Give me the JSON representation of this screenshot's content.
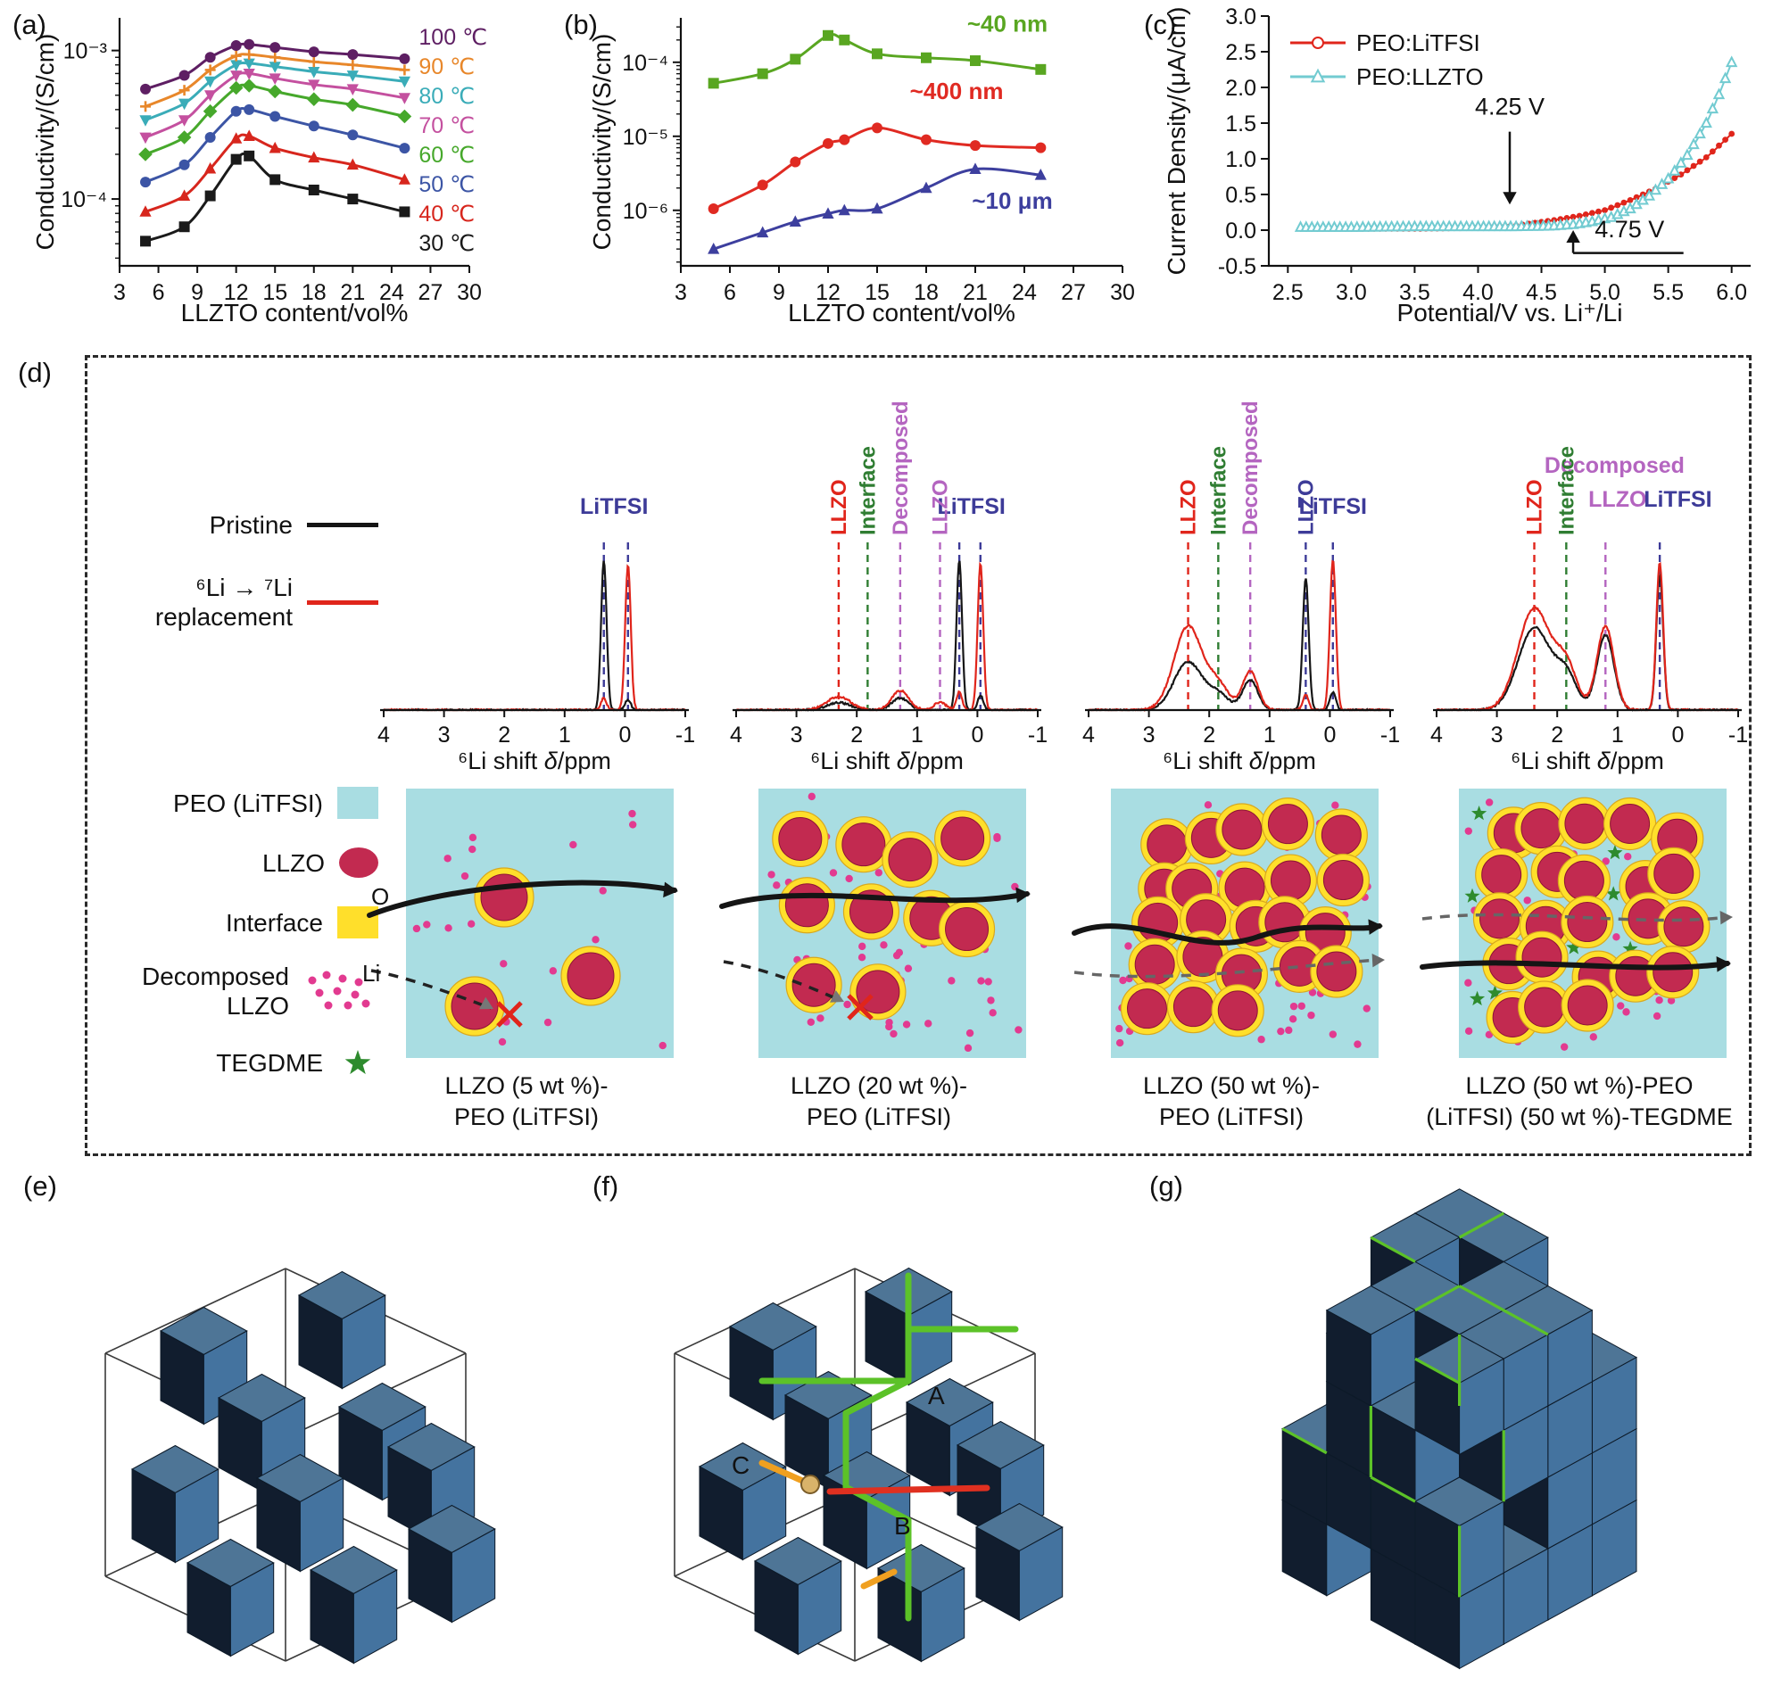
{
  "labels": {
    "a": "(a)",
    "b": "(b)",
    "c": "(c)",
    "d": "(d)",
    "e": "(e)",
    "f": "(f)",
    "g": "(g)"
  },
  "colors": {
    "pristine": "#151515",
    "replacement": "#e0251b",
    "peo_bg": "#a9dde2",
    "llzo_fill": "#c22a50",
    "interface": "#ffdf2b",
    "decomposed_dot": "#e23a90",
    "tegdme_star": "#2e8b2e",
    "cube_top": "#4e7596",
    "cube_left": "#111d2e",
    "cube_right": "#44739f",
    "path_green": "#5cc228",
    "path_red": "#e03020",
    "path_orange": "#f0a020",
    "nmr_blue": "#3d3b98",
    "nmr_red": "#e0251b",
    "nmr_green": "#2f7d32",
    "nmr_purple": "#b465c0"
  },
  "chart_data": [
    {
      "id": "a",
      "type": "line",
      "xlabel": "LLZTO content/vol%",
      "ylabel": "Conductivity/(S/cm)",
      "xlim": [
        3,
        30
      ],
      "xticks": [
        3,
        6,
        9,
        12,
        15,
        18,
        21,
        24,
        27,
        30
      ],
      "log_y": true,
      "ylim_exp": [
        -4.45,
        -2.78
      ],
      "ytick_exps": [
        -4,
        -3
      ],
      "ytick_labels": [
        "10⁻⁴",
        "10⁻³"
      ],
      "x": [
        5,
        8,
        10,
        12,
        13,
        15,
        18,
        21,
        25
      ],
      "series": [
        {
          "name": "30 ℃",
          "color": "#1a1a1a",
          "marker": "square",
          "values": [
            5.2e-05,
            6.5e-05,
            0.000105,
            0.000185,
            0.000195,
            0.000135,
            0.000115,
            0.0001,
            8.2e-05
          ]
        },
        {
          "name": "40 ℃",
          "color": "#d7261d",
          "marker": "tri-up",
          "values": [
            8.2e-05,
            0.000105,
            0.00016,
            0.000255,
            0.000265,
            0.00022,
            0.00019,
            0.00017,
            0.000135
          ]
        },
        {
          "name": "50 ℃",
          "color": "#3c55a5",
          "marker": "circle",
          "values": [
            0.00013,
            0.00017,
            0.00026,
            0.00039,
            0.0004,
            0.00036,
            0.00031,
            0.00027,
            0.00022
          ]
        },
        {
          "name": "60 ℃",
          "color": "#46a82b",
          "marker": "diamond",
          "values": [
            0.0002,
            0.00026,
            0.00039,
            0.00056,
            0.00058,
            0.00053,
            0.00047,
            0.00043,
            0.00036
          ]
        },
        {
          "name": "70 ℃",
          "color": "#c4509f",
          "marker": "tri-down",
          "values": [
            0.00026,
            0.00034,
            0.0005,
            0.00068,
            0.0007,
            0.00065,
            0.00059,
            0.00055,
            0.00048
          ]
        },
        {
          "name": "80 ℃",
          "color": "#3aacb8",
          "marker": "tri-down",
          "values": [
            0.00034,
            0.00044,
            0.00062,
            0.0008,
            0.00082,
            0.00078,
            0.00072,
            0.00068,
            0.00062
          ]
        },
        {
          "name": "90 ℃",
          "color": "#e8872a",
          "marker": "cross",
          "values": [
            0.00042,
            0.00054,
            0.00074,
            0.00092,
            0.00094,
            0.0009,
            0.00084,
            0.0008,
            0.00074
          ]
        },
        {
          "name": "100 ℃",
          "color": "#5e1f63",
          "marker": "circle",
          "values": [
            0.00055,
            0.00068,
            0.0009,
            0.00108,
            0.0011,
            0.00105,
            0.00098,
            0.00094,
            0.00088
          ]
        }
      ]
    },
    {
      "id": "b",
      "type": "line",
      "xlabel": "LLZTO content/vol%",
      "ylabel": "Conductivity/(S/cm)",
      "xlim": [
        3,
        30
      ],
      "xticks": [
        3,
        6,
        9,
        12,
        15,
        18,
        21,
        24,
        27,
        30
      ],
      "log_y": true,
      "ylim_exp": [
        -6.75,
        -3.4
      ],
      "ytick_exps": [
        -6,
        -5,
        -4
      ],
      "ytick_labels": [
        "10⁻⁶",
        "10⁻⁵",
        "10⁻⁴"
      ],
      "x": [
        5,
        8,
        10,
        12,
        13,
        15,
        18,
        21,
        25
      ],
      "series": [
        {
          "name": "~40 nm",
          "color": "#59a621",
          "marker": "square",
          "label_pos": [
            20.5,
            0.00026
          ],
          "values": [
            5.2e-05,
            7e-05,
            0.00011,
            0.00023,
            0.0002,
            0.00013,
            0.000115,
            0.000105,
            8e-05
          ]
        },
        {
          "name": "~400 nm",
          "color": "#e02a22",
          "marker": "circle",
          "label_pos": [
            17.0,
            3.2e-05
          ],
          "values": [
            1.05e-06,
            2.2e-06,
            4.5e-06,
            8e-06,
            9e-06,
            1.3e-05,
            9e-06,
            7.5e-06,
            7e-06
          ]
        },
        {
          "name": "~10 μm",
          "color": "#3d3f9e",
          "marker": "tri-up",
          "label_pos": [
            20.8,
            1.05e-06
          ],
          "values": [
            3e-07,
            5e-07,
            7e-07,
            9e-07,
            1e-06,
            1.05e-06,
            2e-06,
            3.6e-06,
            3e-06
          ]
        }
      ]
    },
    {
      "id": "c",
      "type": "scatter-line",
      "xlabel": "Potential/V vs. Li⁺/Li",
      "ylabel": "Current Density/(μA/cm)",
      "xlim": [
        2.35,
        6.15
      ],
      "xticks": [
        2.5,
        3.0,
        3.5,
        4.0,
        4.5,
        5.0,
        5.5,
        6.0
      ],
      "xtick_labels": [
        "2.5",
        "3.0",
        "3.5",
        "4.0",
        "4.5",
        "5.0",
        "5.5",
        "6.0"
      ],
      "ylim": [
        -0.5,
        3.0
      ],
      "yticks": [
        -0.5,
        0.0,
        0.5,
        1.0,
        1.5,
        2.0,
        2.5,
        3.0
      ],
      "ytick_labels": [
        "-0.5",
        "0.0",
        "0.5",
        "1.0",
        "1.5",
        "2.0",
        "2.5",
        "3.0"
      ],
      "series": [
        {
          "name": "PEO:LiTFSI",
          "color": "#e0251b",
          "marker": "circle",
          "anchors": [
            [
              2.6,
              0.02
            ],
            [
              3.0,
              0.02
            ],
            [
              3.5,
              0.02
            ],
            [
              3.9,
              0.03
            ],
            [
              4.2,
              0.04
            ],
            [
              4.4,
              0.09
            ],
            [
              4.6,
              0.14
            ],
            [
              4.8,
              0.2
            ],
            [
              5.0,
              0.28
            ],
            [
              5.2,
              0.42
            ],
            [
              5.4,
              0.58
            ],
            [
              5.6,
              0.78
            ],
            [
              5.8,
              1.02
            ],
            [
              6.0,
              1.35
            ]
          ]
        },
        {
          "name": "PEO:LLZTO",
          "color": "#72cbd1",
          "marker": "tri-open",
          "anchors": [
            [
              2.6,
              0.04
            ],
            [
              3.0,
              0.04
            ],
            [
              3.5,
              0.05
            ],
            [
              4.0,
              0.05
            ],
            [
              4.3,
              0.05
            ],
            [
              4.6,
              0.06
            ],
            [
              4.75,
              0.08
            ],
            [
              4.9,
              0.12
            ],
            [
              5.05,
              0.18
            ],
            [
              5.2,
              0.3
            ],
            [
              5.35,
              0.48
            ],
            [
              5.5,
              0.72
            ],
            [
              5.65,
              1.05
            ],
            [
              5.8,
              1.5
            ],
            [
              5.9,
              1.9
            ],
            [
              6.0,
              2.35
            ]
          ]
        }
      ],
      "annotations": [
        {
          "text": "4.25 V"
        },
        {
          "text": "4.75 V"
        }
      ]
    }
  ],
  "panel_d": {
    "xlabel": "⁶Li shift δ/ppm",
    "xticks": [
      4,
      3,
      2,
      1,
      0,
      -1
    ],
    "xtick_labels": [
      "4",
      "3",
      "2",
      "1",
      "0",
      "-1"
    ],
    "legend": {
      "pristine": "Pristine",
      "replacement_line1": "⁶Li → ⁷Li",
      "replacement_line2": "replacement",
      "peo": "PEO (LiTFSI)",
      "llzo": "LLZO",
      "interface": "Interface",
      "decomposed_line1": "Decomposed",
      "decomposed_line2": "LLZO",
      "tegdme": "TEGDME",
      "o_label": "O",
      "li_label": "Li"
    },
    "spectra": [
      {
        "top_labels": [
          {
            "text": "LiTFSI",
            "ppm": 0.18,
            "y": 168,
            "color": "#3d3b98"
          }
        ],
        "rot_labels": [],
        "dashed": [
          {
            "ppm": 0.35,
            "color": "#3d3b98"
          },
          {
            "ppm": -0.05,
            "color": "#3d3b98"
          }
        ],
        "black": [
          [
            0.35,
            1.0,
            0.065
          ],
          [
            -0.05,
            0.07,
            0.065
          ]
        ],
        "red": [
          [
            0.35,
            0.08,
            0.065
          ],
          [
            -0.05,
            0.97,
            0.065
          ]
        ]
      },
      {
        "top_labels": [
          {
            "text": "LiTFSI",
            "ppm": 0.1,
            "y": 168,
            "color": "#3d3b98"
          }
        ],
        "rot_labels": [
          {
            "text": "LLZO",
            "ppm": 2.3,
            "color": "#e0251b"
          },
          {
            "text": "Interface",
            "ppm": 1.82,
            "color": "#2f7d32"
          },
          {
            "text": "Decomposed",
            "ppm": 1.28,
            "color": "#b465c0"
          },
          {
            "text": "LLZO",
            "ppm": 0.62,
            "color": "#b465c0"
          }
        ],
        "dashed": [
          {
            "ppm": 2.3,
            "color": "#e0251b"
          },
          {
            "ppm": 1.82,
            "color": "#2f7d32"
          },
          {
            "ppm": 1.28,
            "color": "#b465c0"
          },
          {
            "ppm": 0.62,
            "color": "#b465c0"
          },
          {
            "ppm": 0.3,
            "color": "#3d3b98"
          },
          {
            "ppm": -0.05,
            "color": "#3d3b98"
          }
        ],
        "black": [
          [
            2.3,
            0.05,
            0.28
          ],
          [
            1.28,
            0.08,
            0.2
          ],
          [
            0.3,
            1.0,
            0.065
          ],
          [
            -0.05,
            0.1,
            0.065
          ]
        ],
        "red": [
          [
            2.3,
            0.09,
            0.28
          ],
          [
            1.28,
            0.13,
            0.2
          ],
          [
            0.62,
            0.05,
            0.15
          ],
          [
            0.3,
            0.12,
            0.065
          ],
          [
            -0.05,
            0.98,
            0.065
          ]
        ]
      },
      {
        "top_labels": [
          {
            "text": "LiTFSI",
            "ppm": -0.05,
            "y": 168,
            "color": "#3d3b98"
          }
        ],
        "rot_labels": [
          {
            "text": "LLZO",
            "ppm": 2.35,
            "color": "#e0251b"
          },
          {
            "text": "Interface",
            "ppm": 1.85,
            "color": "#2f7d32"
          },
          {
            "text": "Decomposed",
            "ppm": 1.32,
            "color": "#b465c0"
          },
          {
            "text": "LLZO",
            "ppm": 0.4,
            "color": "#3d3b98"
          }
        ],
        "dashed": [
          {
            "ppm": 2.35,
            "color": "#e0251b"
          },
          {
            "ppm": 1.85,
            "color": "#2f7d32"
          },
          {
            "ppm": 1.32,
            "color": "#b465c0"
          },
          {
            "ppm": 0.4,
            "color": "#3d3b98"
          },
          {
            "ppm": -0.05,
            "color": "#3d3b98"
          }
        ],
        "black": [
          [
            2.35,
            0.32,
            0.33
          ],
          [
            1.85,
            0.1,
            0.25
          ],
          [
            1.32,
            0.2,
            0.18
          ],
          [
            0.4,
            0.88,
            0.07
          ],
          [
            -0.05,
            0.12,
            0.07
          ]
        ],
        "red": [
          [
            2.35,
            0.56,
            0.33
          ],
          [
            1.85,
            0.16,
            0.25
          ],
          [
            1.32,
            0.26,
            0.18
          ],
          [
            0.4,
            0.1,
            0.07
          ],
          [
            -0.05,
            1.0,
            0.07
          ]
        ]
      },
      {
        "top_labels": [
          {
            "text": "Decomposed",
            "ppm": 1.05,
            "y": 122,
            "color": "#b465c0"
          },
          {
            "text": "LLZO",
            "ppm": 1.0,
            "y": 160,
            "color": "#b465c0"
          },
          {
            "text": "LiTFSI",
            "ppm": 0.0,
            "y": 160,
            "color": "#3d3b98"
          }
        ],
        "rot_labels": [
          {
            "text": "LLZO",
            "ppm": 2.38,
            "color": "#e0251b"
          },
          {
            "text": "Interface",
            "ppm": 1.85,
            "color": "#2f7d32"
          }
        ],
        "dashed": [
          {
            "ppm": 2.38,
            "color": "#e0251b"
          },
          {
            "ppm": 1.85,
            "color": "#2f7d32"
          },
          {
            "ppm": 1.2,
            "color": "#b465c0"
          },
          {
            "ppm": 0.3,
            "color": "#3d3b98"
          }
        ],
        "black": [
          [
            2.38,
            0.55,
            0.38
          ],
          [
            1.85,
            0.22,
            0.25
          ],
          [
            1.2,
            0.5,
            0.2
          ],
          [
            0.3,
            0.9,
            0.08
          ]
        ],
        "red": [
          [
            2.38,
            0.68,
            0.38
          ],
          [
            1.85,
            0.28,
            0.25
          ],
          [
            1.2,
            0.56,
            0.2
          ],
          [
            0.3,
            0.98,
            0.08
          ]
        ]
      }
    ],
    "schematics": [
      {
        "caption1": "LLZO (5 wt %)-",
        "caption2": "PEO (LiTFSI)",
        "particles": 3,
        "dots": 20,
        "stars": 0
      },
      {
        "caption1": "LLZO (20 wt %)-",
        "caption2": "PEO (LiTFSI)",
        "particles": 10,
        "dots": 55,
        "stars": 0
      },
      {
        "caption1": "LLZO (50 wt %)-",
        "caption2": "PEO (LiTFSI)",
        "particles": 23,
        "dots": 60,
        "stars": 0
      },
      {
        "caption1": "LLZO (50 wt %)-PEO",
        "caption2": "(LiTFSI) (50 wt %)-TEGDME",
        "particles": 23,
        "dots": 45,
        "stars": 16
      }
    ]
  },
  "panel_f": {
    "label_a": "A",
    "label_b": "B",
    "label_c": "C"
  }
}
